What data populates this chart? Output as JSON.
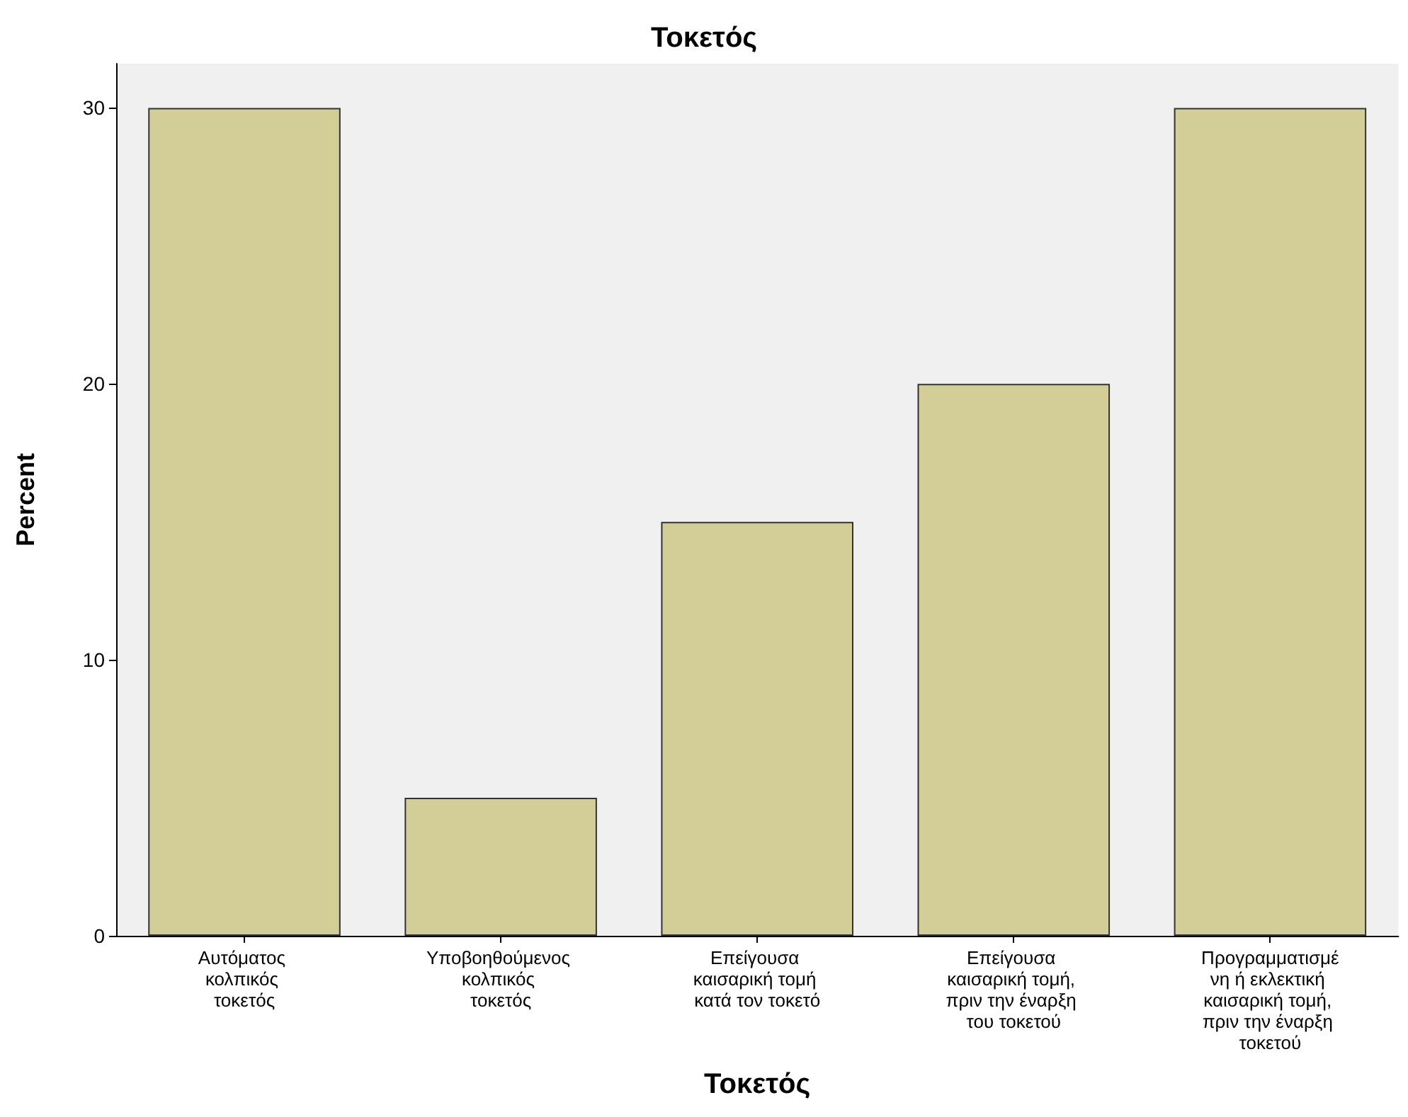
{
  "chart_data": {
    "type": "bar",
    "title": "Τοκετός",
    "xlabel": "Τοκετός",
    "ylabel": "Percent",
    "categories": [
      "Αυτόματος κολπικός τοκετός",
      "Υποβοηθούμενος κολπικός τοκετός",
      "Επείγουσα καισαρική τομή κατά τον τοκετό",
      "Επείγουσα καισαρική τομή, πριν την έναρξη του τοκετού",
      "Προγραμματισμένη ή εκλεκτική καισαρική τομή, πριν την έναρξη τοκετού"
    ],
    "values": [
      30,
      5,
      15,
      20,
      30
    ],
    "color": "#d3ce97",
    "ylim": [
      0,
      31.6
    ],
    "yticks": [
      0,
      10,
      20,
      30
    ],
    "grid": false
  }
}
